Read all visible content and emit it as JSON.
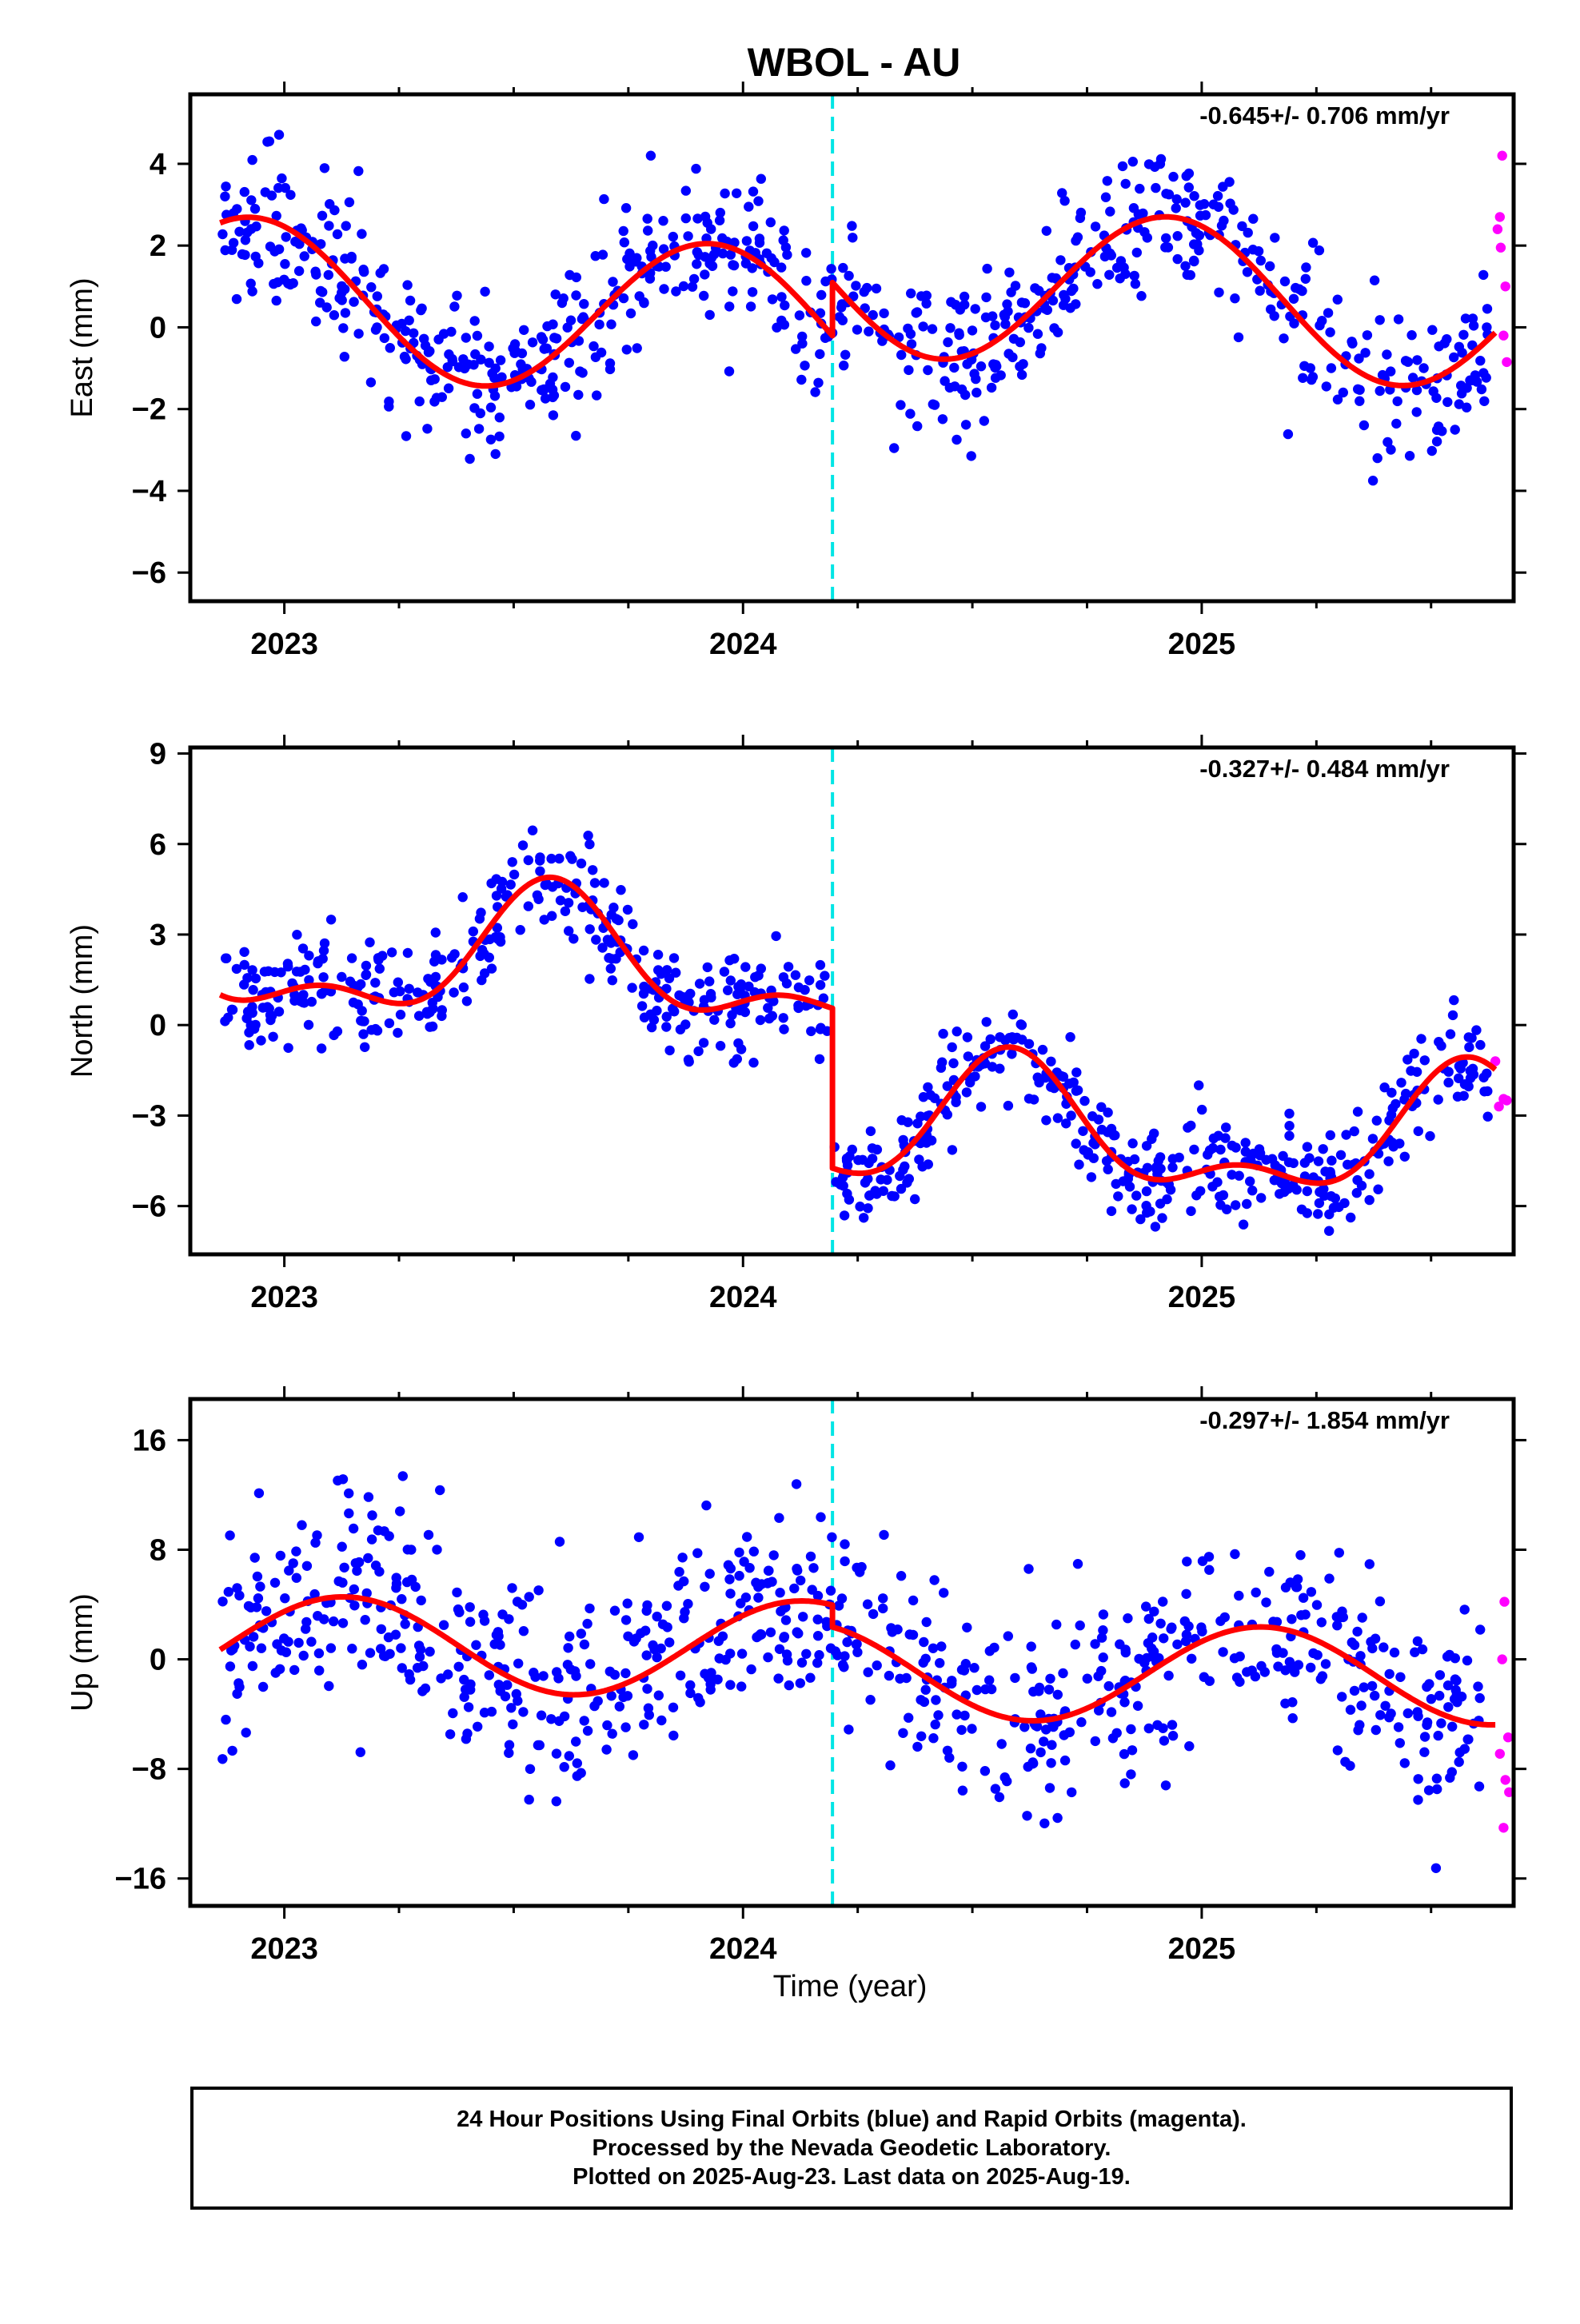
{
  "title": "WBOL - AU",
  "xlabel": "Time (year)",
  "x_ticks": [
    2023,
    2024,
    2025
  ],
  "colors": {
    "final": "#0000ff",
    "rapid": "#ff00ff",
    "model": "#ff0000",
    "event": "#00e5e5",
    "frame": "#000000"
  },
  "event_year": 2024.195,
  "footer": {
    "line1": "24 Hour Positions Using Final Orbits (blue) and Rapid Orbits (magenta).",
    "line2": "Processed by the Nevada Geodetic Laboratory.",
    "line3": "Plotted on 2025-Aug-23. Last data on 2025-Aug-19."
  },
  "chart_data": [
    {
      "type": "scatter",
      "name": "east",
      "ylabel": "East (mm)",
      "rate": "-0.645+/- 0.706 mm/yr",
      "xlim": [
        2022.795,
        2025.68
      ],
      "ylim": [
        -6.7,
        5.7
      ],
      "y_ticks": [
        -6,
        -4,
        -2,
        0,
        2,
        4
      ],
      "tick_labels": [
        "−6",
        "−4",
        "−2",
        "0",
        "2",
        "4"
      ],
      "model": {
        "offset": 0.1,
        "trend": -0.645,
        "amp": 1.9,
        "peak": 2023.93,
        "step": 1.3,
        "shape": "single"
      },
      "scatter_sigma": 0.9,
      "rapid_points": [
        [
          2025.655,
          4.2
        ],
        [
          2025.65,
          2.7
        ],
        [
          2025.645,
          2.4
        ],
        [
          2025.652,
          1.95
        ],
        [
          2025.662,
          1.0
        ],
        [
          2025.658,
          -0.2
        ],
        [
          2025.665,
          -0.85
        ]
      ]
    },
    {
      "type": "scatter",
      "name": "north",
      "ylabel": "North (mm)",
      "rate": "-0.327+/- 0.484 mm/yr",
      "xlim": [
        2022.795,
        2025.68
      ],
      "ylim": [
        -7.6,
        9.2
      ],
      "y_ticks": [
        -6,
        -3,
        0,
        3,
        6,
        9
      ],
      "tick_labels": [
        "−6",
        "−3",
        "0",
        "3",
        "6",
        "9"
      ],
      "model": {
        "offset": 1.9,
        "trend": -0.327,
        "amp": 2.6,
        "peak": 2023.58,
        "step": -5.3,
        "shape": "peaked"
      },
      "scatter_sigma": 0.85,
      "rapid_points": [
        [
          2025.64,
          -1.2
        ],
        [
          2025.648,
          -2.7
        ],
        [
          2025.658,
          -2.45
        ],
        [
          2025.665,
          -2.5
        ]
      ]
    },
    {
      "type": "scatter",
      "name": "up",
      "ylabel": "Up (mm)",
      "rate": "-0.297+/- 1.854 mm/yr",
      "xlim": [
        2022.795,
        2025.68
      ],
      "ylim": [
        -18,
        19
      ],
      "y_ticks": [
        -16,
        -8,
        0,
        8,
        16
      ],
      "tick_labels": [
        "−16",
        "−8",
        "0",
        "8",
        "16"
      ],
      "model": {
        "offset": 0.8,
        "trend": -0.297,
        "amp": 3.5,
        "peak": 2023.13,
        "step": -1.6,
        "shape": "single"
      },
      "scatter_sigma": 3.6,
      "rapid_points": [
        [
          2025.66,
          4.2
        ],
        [
          2025.655,
          0.0
        ],
        [
          2025.668,
          -5.7
        ],
        [
          2025.65,
          -6.9
        ],
        [
          2025.662,
          -8.8
        ],
        [
          2025.67,
          -9.7
        ],
        [
          2025.658,
          -12.3
        ]
      ]
    }
  ]
}
